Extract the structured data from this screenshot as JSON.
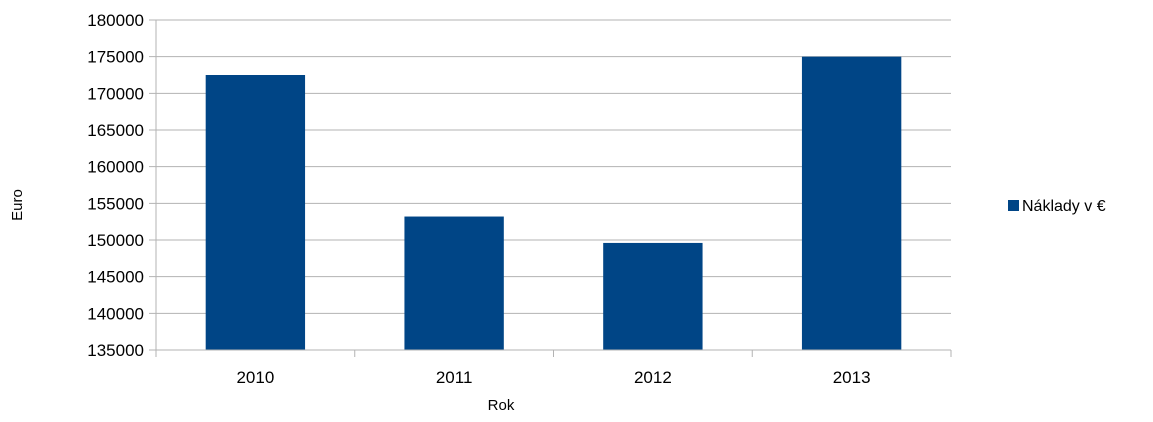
{
  "chart_data": {
    "type": "bar",
    "categories": [
      "2010",
      "2011",
      "2012",
      "2013"
    ],
    "series": [
      {
        "name": "Náklady v €",
        "values": [
          172500,
          153200,
          149600,
          175000
        ]
      }
    ],
    "xlabel": "Rok",
    "ylabel": "Euro",
    "ylim": [
      135000,
      180000
    ],
    "ytick_step": 5000,
    "grid": true,
    "legend_position": "right",
    "bar_color": "#004586",
    "grid_color": "#b3b3b3",
    "axis_color": "#b3b3b3"
  }
}
